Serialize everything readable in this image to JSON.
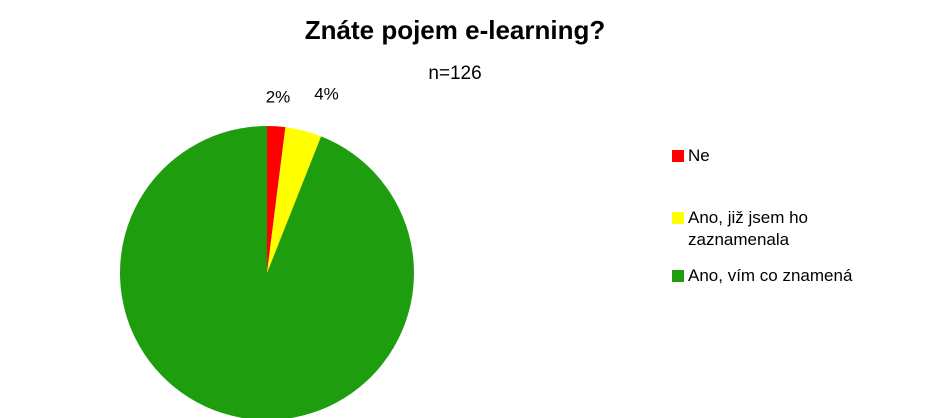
{
  "chart_data": {
    "type": "pie",
    "title": "Znáte pojem e-learning?",
    "subtitle": "n=126",
    "categories": [
      "Ne",
      "Ano, již jsem ho zaznamenala",
      "Ano, vím co znamená"
    ],
    "values": [
      2,
      4,
      94
    ],
    "colors": [
      "#ff0000",
      "#ffff00",
      "#1e9e0f"
    ],
    "legend": "right"
  }
}
